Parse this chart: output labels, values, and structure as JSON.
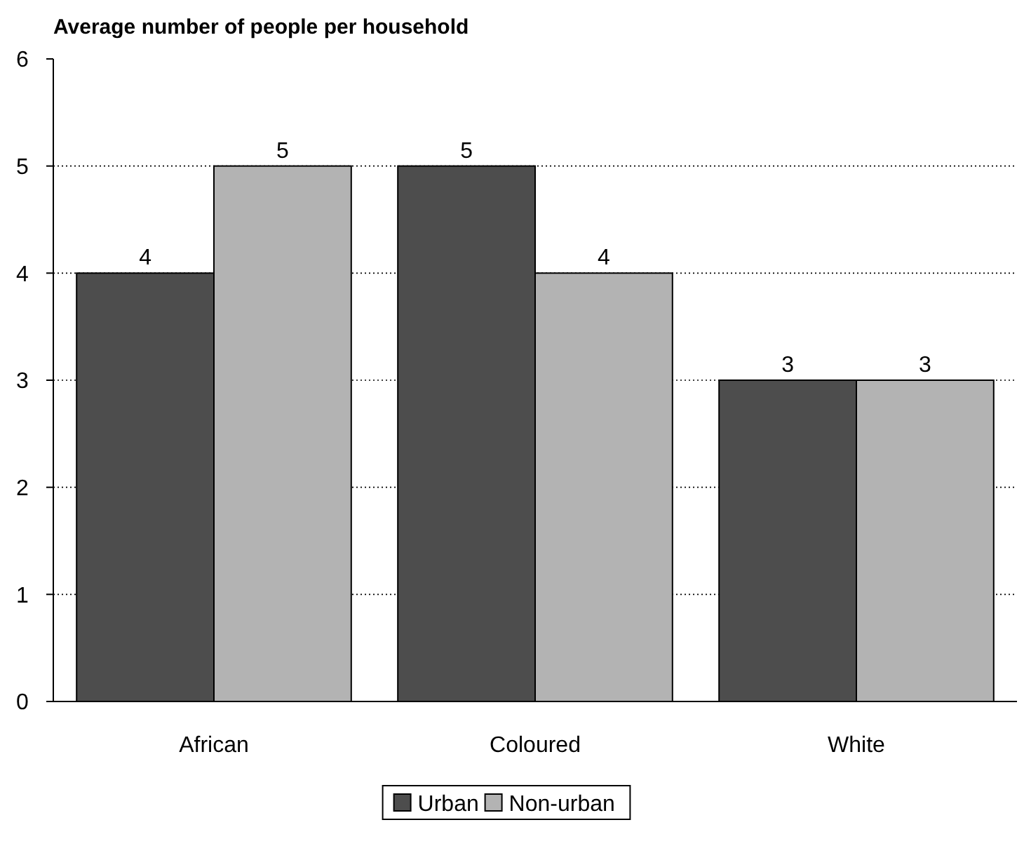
{
  "chart_data": {
    "type": "bar",
    "title": "Average number of people per household",
    "categories": [
      "African",
      "Coloured",
      "White"
    ],
    "series": [
      {
        "name": "Urban",
        "color": "#4d4d4d",
        "values": [
          4,
          5,
          3
        ]
      },
      {
        "name": "Non-urban",
        "color": "#b3b3b3",
        "values": [
          5,
          4,
          3
        ]
      }
    ],
    "ylim": [
      0,
      6
    ],
    "yticks": [
      0,
      1,
      2,
      3,
      4,
      5,
      6
    ],
    "grid": "y",
    "legend": "bottom",
    "data_labels": true
  }
}
